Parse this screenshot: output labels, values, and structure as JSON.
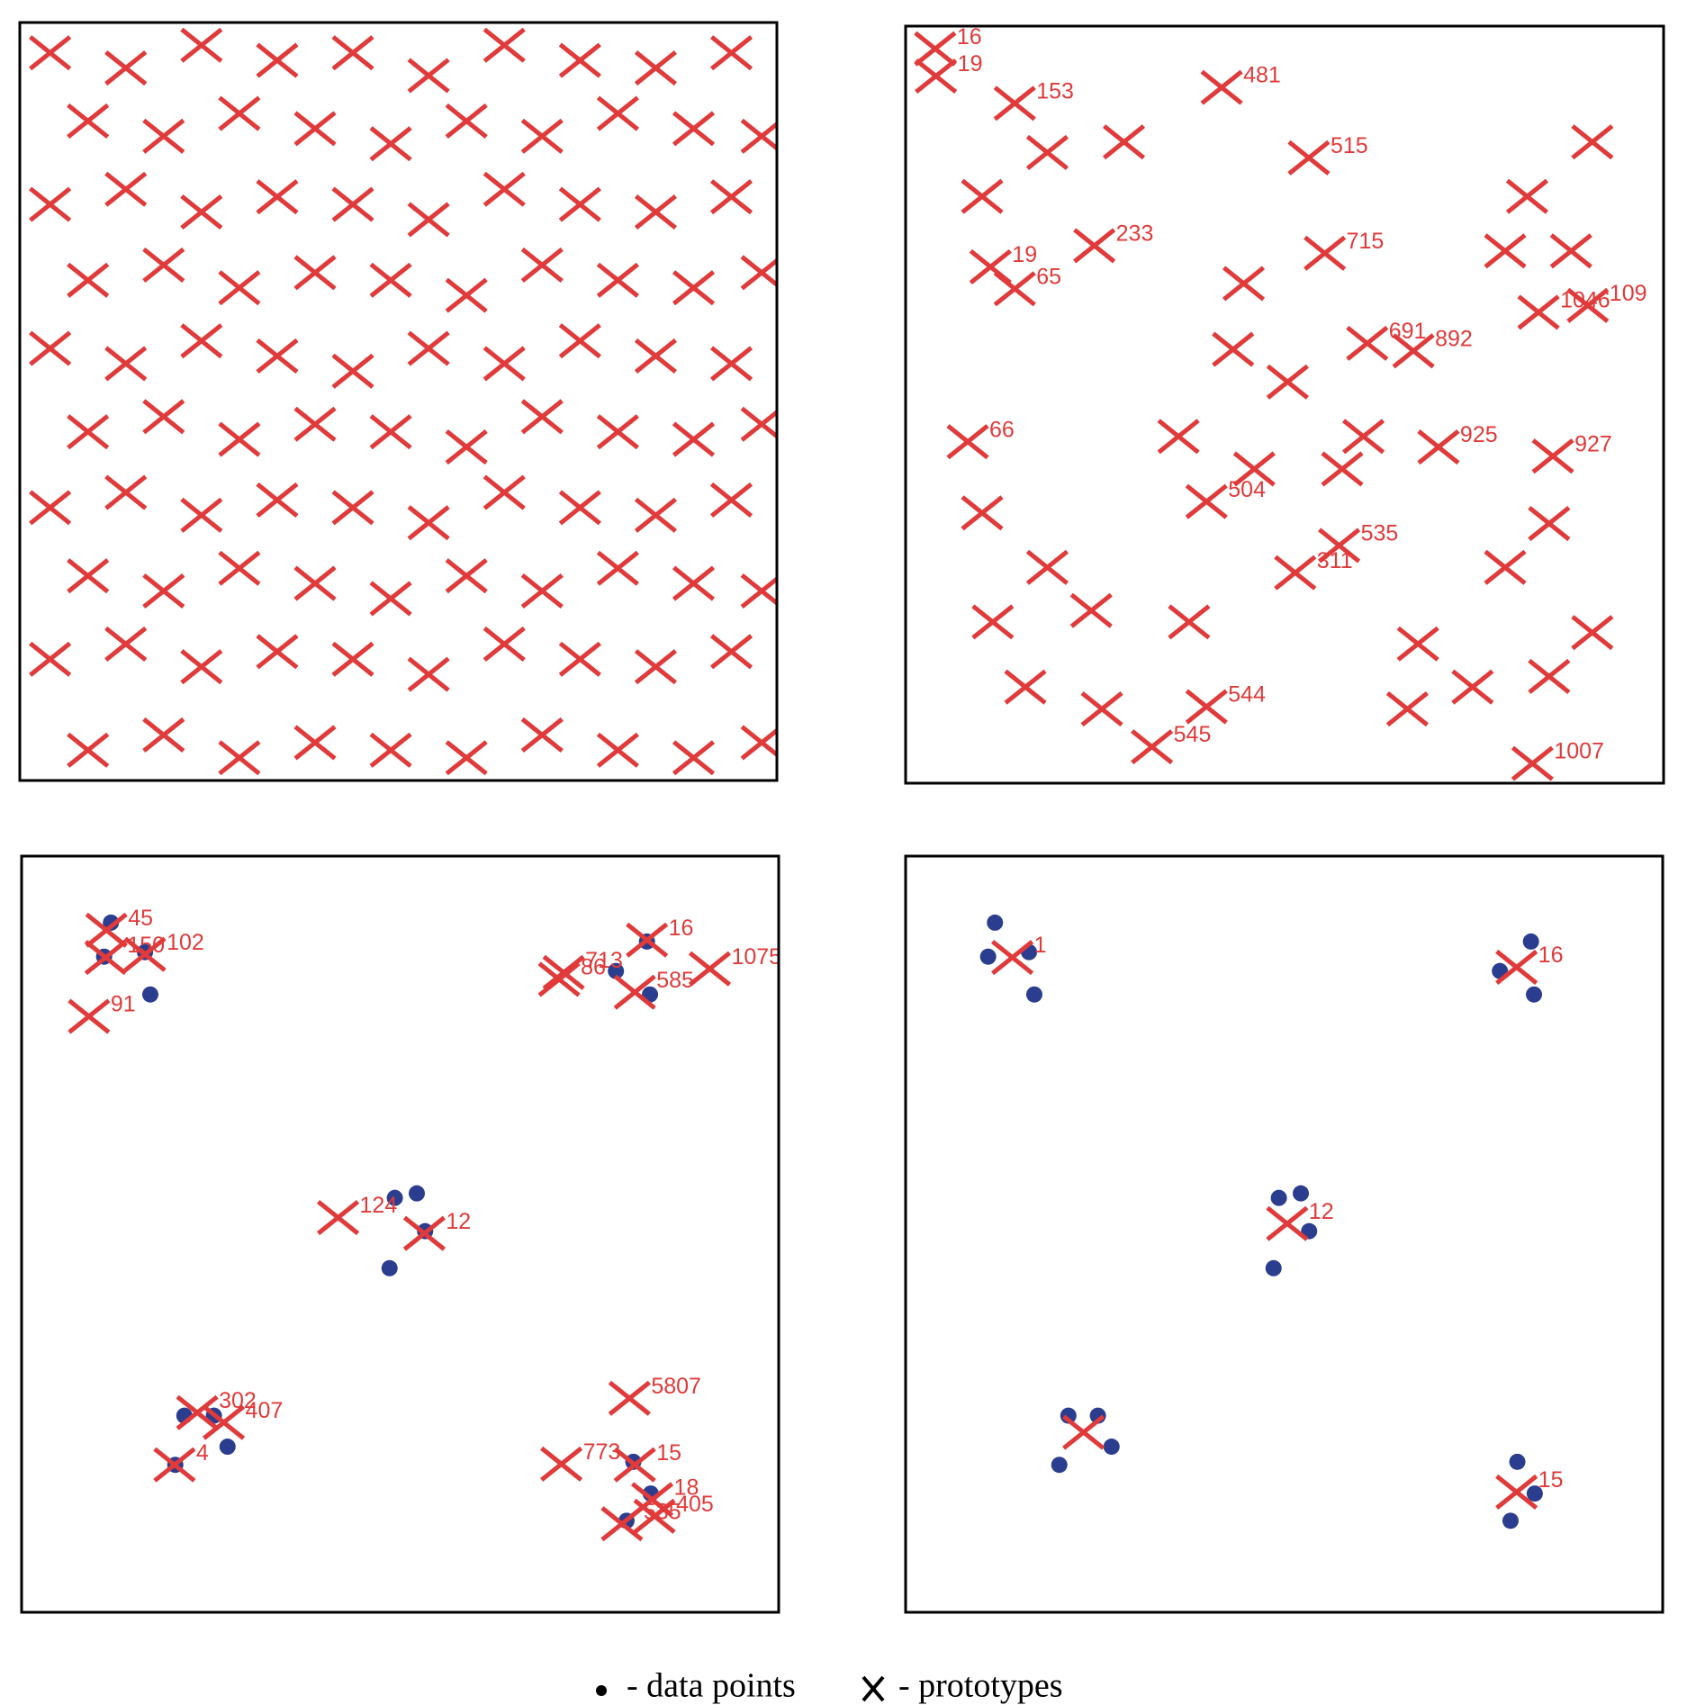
{
  "chart_data": [
    {
      "type": "scatter",
      "xlim": [
        0,
        100
      ],
      "ylim": [
        0,
        100
      ],
      "series": [
        {
          "marker": "cross",
          "color": "#e03a3a",
          "x": [
            4,
            14,
            24,
            34,
            44,
            54,
            64,
            74,
            84,
            94,
            9,
            19,
            29,
            39,
            49,
            59,
            69,
            79,
            89,
            98,
            4,
            14,
            24,
            34,
            44,
            54,
            64,
            74,
            84,
            94,
            9,
            19,
            29,
            39,
            49,
            59,
            69,
            79,
            89,
            98,
            4,
            14,
            24,
            34,
            44,
            54,
            64,
            74,
            84,
            94,
            9,
            19,
            29,
            39,
            49,
            59,
            69,
            79,
            89,
            98,
            4,
            14,
            24,
            34,
            44,
            54,
            64,
            74,
            84,
            94,
            9,
            19,
            29,
            39,
            49,
            59,
            69,
            79,
            89,
            98,
            4,
            14,
            24,
            34,
            44,
            54,
            64,
            74,
            84,
            94,
            9,
            19,
            29,
            39,
            49,
            59,
            69,
            79,
            89,
            98
          ],
          "values": [
            96,
            94,
            97,
            95,
            96,
            93,
            97,
            95,
            94,
            96,
            87,
            85,
            88,
            86,
            84,
            87,
            85,
            88,
            86,
            85,
            76,
            78,
            75,
            77,
            76,
            74,
            78,
            76,
            75,
            77,
            66,
            68,
            65,
            67,
            66,
            64,
            68,
            66,
            65,
            67,
            57,
            55,
            58,
            56,
            54,
            57,
            55,
            58,
            56,
            55,
            46,
            48,
            45,
            47,
            46,
            44,
            48,
            46,
            45,
            47,
            36,
            38,
            35,
            37,
            36,
            34,
            38,
            36,
            35,
            37,
            27,
            25,
            28,
            26,
            24,
            27,
            25,
            28,
            26,
            25,
            16,
            18,
            15,
            17,
            16,
            14,
            18,
            16,
            15,
            17,
            4,
            6,
            3,
            5,
            4,
            3,
            6,
            4,
            3,
            5
          ]
        }
      ]
    },
    {
      "type": "scatter",
      "xlim": [
        0,
        100
      ],
      "ylim": [
        0,
        100
      ],
      "series": [
        {
          "marker": "cross",
          "color": "#e03a3a",
          "x": [
            3.9,
            4.0,
            14.4,
            41.7,
            53.2,
            14.4,
            11.2,
            24.9,
            55.3,
            60.9,
            67.0,
            83.5,
            90.0,
            8.2,
            70.3,
            85.4,
            39.7,
            57.2,
            51.4,
            32.5,
            82.7,
            39.7,
            10.1,
            18.7,
            28.8,
            44.6,
            50.4,
            43.2,
            60.4,
            82.0,
            87.8,
            79.1,
            90.6,
            10.1,
            18.7,
            11.5,
            24.5,
            67.6,
            74.8,
            66.2,
            84.9,
            90.6,
            79.1,
            84.9,
            36.0,
            46.0,
            57.6,
            25.9,
            15.8,
            37.4
          ],
          "values": [
            97.0,
            93.4,
            89.8,
            91.9,
            82.6,
            65.3,
            68.2,
            71.0,
            70.0,
            58.1,
            57.1,
            62.2,
            63.1,
            45.1,
            44.4,
            43.2,
            37.2,
            31.4,
            27.8,
            4.8,
            2.6,
            10.1,
            77.5,
            83.3,
            84.7,
            66.0,
            53.0,
            57.3,
            45.8,
            77.5,
            70.3,
            70.3,
            84.7,
            35.7,
            28.5,
            21.3,
            22.8,
            18.4,
            12.7,
            9.8,
            14.1,
            19.9,
            28.5,
            34.3,
            45.8,
            41.5,
            41.5,
            9.8,
            12.7,
            21.3
          ],
          "labels": [
            "16",
            "19",
            "153",
            "481",
            "515",
            "65",
            "19",
            "233",
            "715",
            "691",
            "892",
            "1046",
            "109",
            "66",
            "925",
            "927",
            "504",
            "535",
            "311",
            "545",
            "1007",
            "544",
            null,
            null,
            null,
            null,
            null,
            null,
            null,
            null,
            null,
            null,
            null,
            null,
            null,
            null,
            null,
            null,
            null,
            null,
            null,
            null,
            null,
            null,
            null,
            null,
            null,
            null,
            null,
            null
          ]
        }
      ]
    },
    {
      "type": "scatter",
      "xlim": [
        0,
        100
      ],
      "ylim": [
        0,
        100
      ],
      "series": [
        {
          "marker": "dot",
          "color": "#2b3d8f",
          "x": [
            11.8,
            10.9,
            16.3,
            17.0,
            82.6,
            78.5,
            83.0,
            49.3,
            52.2,
            53.3,
            48.6,
            21.5,
            25.4,
            27.2,
            20.3,
            80.8,
            83.1,
            79.9
          ],
          "values": [
            91.2,
            86.7,
            87.3,
            81.7,
            88.7,
            84.8,
            81.7,
            54.8,
            55.4,
            50.4,
            45.5,
            26.0,
            26.0,
            21.9,
            19.5,
            19.9,
            15.7,
            12.1
          ]
        },
        {
          "marker": "cross",
          "color": "#e03a3a",
          "x": [
            11.2,
            11.1,
            16.3,
            8.9,
            82.6,
            71.6,
            71.0,
            81.0,
            90.9,
            41.8,
            53.2,
            23.2,
            26.7,
            20.2,
            80.3,
            71.3,
            81.0,
            83.3,
            83.6,
            79.3
          ],
          "values": [
            90.2,
            86.6,
            87.0,
            78.8,
            88.9,
            84.6,
            83.7,
            82.0,
            85.1,
            52.2,
            50.1,
            26.4,
            25.1,
            19.5,
            28.3,
            19.6,
            19.5,
            14.9,
            12.7,
            11.7
          ],
          "labels": [
            "45",
            "150",
            "102",
            "91",
            "16",
            "713",
            "86",
            "585",
            "1075",
            "124",
            "12",
            "302",
            "407",
            "4",
            "5807",
            "773",
            "15",
            "18",
            "405",
            "535"
          ]
        }
      ]
    },
    {
      "type": "scatter",
      "xlim": [
        0,
        100
      ],
      "ylim": [
        0,
        100
      ],
      "series": [
        {
          "marker": "dot",
          "color": "#2b3d8f",
          "x": [
            11.8,
            10.9,
            16.3,
            17.0,
            82.6,
            78.5,
            83.0,
            49.3,
            52.2,
            53.3,
            48.6,
            21.5,
            25.4,
            27.2,
            20.3,
            80.8,
            83.1,
            79.9
          ],
          "values": [
            91.2,
            86.7,
            87.3,
            81.7,
            88.7,
            84.8,
            81.7,
            54.8,
            55.4,
            50.4,
            45.5,
            26.0,
            26.0,
            21.9,
            19.5,
            19.9,
            15.7,
            12.1
          ]
        },
        {
          "marker": "cross",
          "color": "#e03a3a",
          "x": [
            14.1,
            80.7,
            50.4,
            23.5,
            80.7
          ],
          "values": [
            86.6,
            85.3,
            51.4,
            23.8,
            15.9
          ],
          "labels": [
            "1",
            "16",
            "12",
            null,
            "15"
          ]
        }
      ]
    }
  ],
  "legend": {
    "items": [
      {
        "marker": "dot",
        "color": "#2b3d8f",
        "label": "- data points"
      },
      {
        "marker": "cross",
        "color": "#e03a3a",
        "label": "- prototypes"
      }
    ]
  }
}
